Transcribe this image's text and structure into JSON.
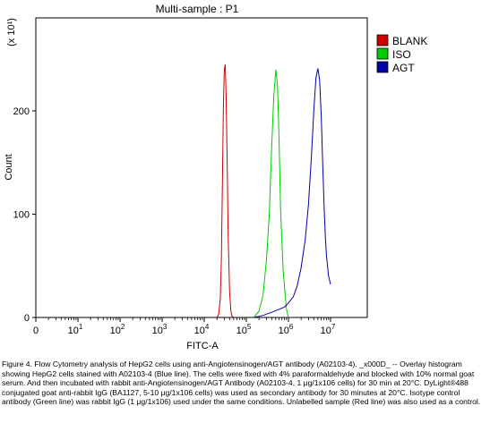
{
  "chart_data": {
    "type": "line",
    "title": "Multi-sample : P1",
    "xlabel": "FITC-A",
    "ylabel": "Count",
    "y_multiplier": "(x 10¹)",
    "x_scale": "log",
    "x_ticks": [
      {
        "base": "0",
        "exp": ""
      },
      {
        "base": "10",
        "exp": "1"
      },
      {
        "base": "10",
        "exp": "2"
      },
      {
        "base": "10",
        "exp": "3"
      },
      {
        "base": "10",
        "exp": "4"
      },
      {
        "base": "10",
        "exp": "5"
      },
      {
        "base": "10",
        "exp": "6"
      },
      {
        "base": "10",
        "exp": "7"
      }
    ],
    "y_ticks": [
      "0",
      "100",
      "200"
    ],
    "ylim": [
      0,
      290
    ],
    "legend_position": "top-right",
    "series": [
      {
        "name": "BLANK",
        "color": "#cc0000",
        "x": [
          20000,
          22000,
          24000,
          25500,
          27000,
          28500,
          30000,
          31500,
          33000,
          35000,
          37000,
          40000,
          43000,
          46000,
          50000
        ],
        "y": [
          0,
          3,
          18,
          55,
          130,
          205,
          240,
          245,
          215,
          150,
          80,
          25,
          6,
          1,
          0
        ]
      },
      {
        "name": "ISO",
        "color": "#00cc00",
        "x": [
          150000,
          200000,
          250000,
          300000,
          350000,
          400000,
          450000,
          500000,
          550000,
          600000,
          650000,
          750000,
          900000,
          1000000
        ],
        "y": [
          0,
          6,
          22,
          55,
          100,
          165,
          215,
          240,
          225,
          170,
          105,
          45,
          8,
          0
        ]
      },
      {
        "name": "AGT",
        "color": "#0000aa",
        "x": [
          150000,
          250000,
          400000,
          600000,
          800000,
          1000000,
          1300000,
          1600000,
          2000000,
          2500000,
          3000000,
          3500000,
          4000000,
          4500000,
          5000000,
          5500000,
          6000000,
          6500000,
          7000000,
          7500000,
          8000000,
          9000000,
          10000000
        ],
        "y": [
          0,
          2,
          5,
          8,
          10,
          14,
          20,
          30,
          48,
          75,
          110,
          155,
          200,
          232,
          241,
          230,
          195,
          150,
          110,
          80,
          60,
          40,
          32
        ]
      }
    ]
  },
  "caption": "Figure 4. Flow Cytometry analysis of HepG2 cells using anti-Angiotensinogen/AGT antibody (A02103-4). _x000D_ -- Overlay histogram showing HepG2 cells stained with A02103-4 (Blue line). The cells were fixed with 4% paraformaldehyde and blocked with 10% normal goat serum. And then incubated with rabbit anti-Angiotensinogen/AGT Antibody (A02103-4, 1 μg/1x106 cells) for 30 min at 20°C. DyLight®488 conjugated goat anti-rabbit IgG (BA1127, 5-10 μg/1x106 cells) was used as secondary antibody for 30 minutes at 20°C. Isotype control antibody (Green line) was rabbit IgG (1 μg/1x106) used under the same conditions. Unlabelled sample (Red line) was also used as a control."
}
